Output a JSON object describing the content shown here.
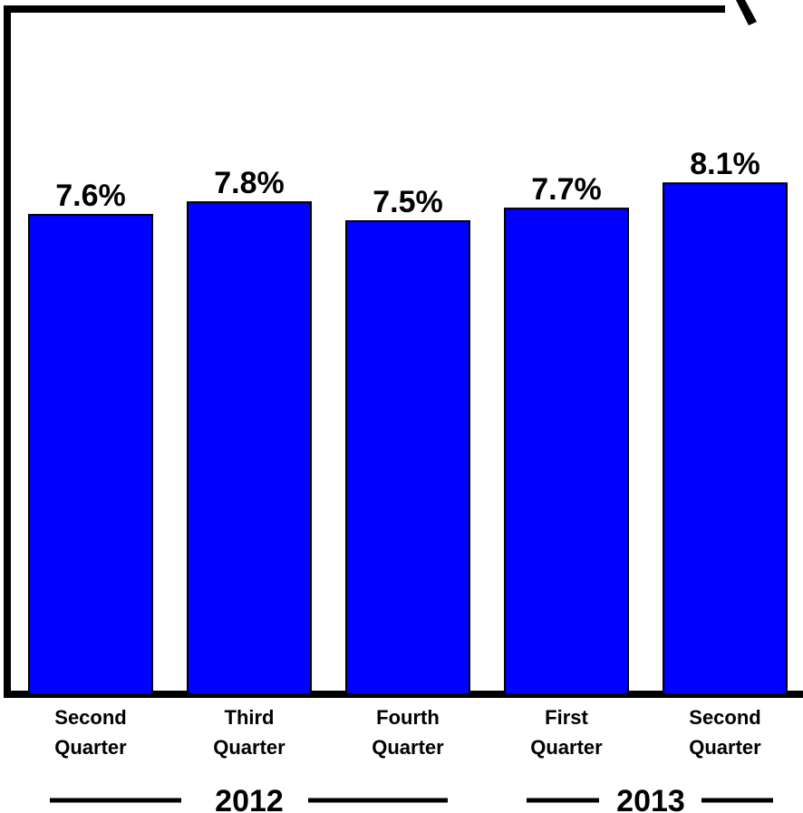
{
  "chart_data": {
    "type": "bar",
    "categories": [
      [
        "Second",
        "Quarter"
      ],
      [
        "Third",
        "Quarter"
      ],
      [
        "Fourth",
        "Quarter"
      ],
      [
        "First",
        "Quarter"
      ],
      [
        "Second",
        "Quarter"
      ]
    ],
    "values": [
      7.6,
      7.8,
      7.5,
      7.7,
      8.1
    ],
    "data_labels": [
      "7.6%",
      "7.8%",
      "7.5%",
      "7.7%",
      "8.1%"
    ],
    "year_groups": [
      {
        "label": "2012",
        "span": [
          0,
          2
        ]
      },
      {
        "label": "2013",
        "span": [
          3,
          4
        ]
      }
    ],
    "bar_color": "#0000ff",
    "axis_color": "#000000",
    "grid": false,
    "title": "",
    "xlabel": "",
    "ylabel": ""
  }
}
